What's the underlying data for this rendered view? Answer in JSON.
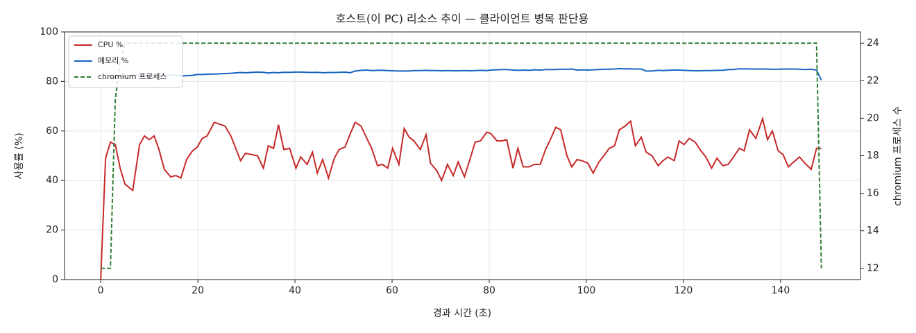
{
  "chart_data": {
    "type": "line",
    "title": "호스트(이 PC) 리소스 추이 — 클라이언트 병목 판단용",
    "x_label": "경과 시간 (초)",
    "y_label": "사용률 (%)",
    "y2_label": "chromium 프로세스 수",
    "x": [
      0,
      1,
      2,
      3,
      4,
      5,
      6.6,
      8,
      9,
      10,
      11,
      12,
      13.1,
      14.4,
      15.5,
      16.5,
      17.7,
      18.9,
      19.9,
      20.9,
      21.9,
      23.4,
      25.6,
      26.8,
      28.8,
      29.8,
      32.3,
      33.5,
      34.5,
      35.6,
      36.6,
      37.7,
      38.9,
      40.2,
      41.2,
      42.5,
      43.6,
      44.6,
      45.7,
      46.9,
      48.1,
      49.1,
      50.3,
      51.3,
      52.4,
      53.6,
      54.8,
      55.8,
      57,
      58,
      59.1,
      60.1,
      61.4,
      62.5,
      63.5,
      64.5,
      65.8,
      67,
      67.9,
      69.2,
      70.2,
      71.4,
      72.6,
      73.6,
      74.9,
      76.1,
      77.1,
      78.2,
      79.5,
      80.3,
      81.6,
      82.6,
      83.6,
      84.9,
      85.9,
      87,
      88.2,
      89.3,
      90.5,
      91.6,
      92.7,
      93.7,
      94.7,
      96,
      97,
      98.1,
      99.1,
      100.3,
      101.4,
      102.6,
      103.6,
      104.7,
      105.8,
      106.8,
      108,
      109.1,
      110.1,
      111.3,
      112.3,
      113.5,
      114.8,
      115.8,
      116.8,
      118.1,
      119.1,
      120.1,
      121.2,
      122.4,
      123.4,
      124.6,
      125.8,
      126.9,
      128.1,
      129.2,
      130.3,
      131.5,
      132.5,
      133.6,
      134.9,
      136.3,
      137.3,
      138.3,
      139.5,
      140.5,
      141.6,
      142.7,
      143.9,
      145,
      146.3,
      147.4,
      148.4
    ],
    "series": [
      {
        "name": "CPU %",
        "color": "#c62828",
        "dash": false,
        "values": [
          0,
          49,
          55.5,
          54.5,
          45,
          38.5,
          36,
          54.5,
          58,
          56.5,
          58,
          52.5,
          44.5,
          41.5,
          42,
          41,
          48.5,
          52,
          53.5,
          57,
          58,
          63.5,
          62,
          58,
          48,
          51,
          50,
          45,
          54,
          53,
          62.5,
          52.5,
          53,
          45,
          49.5,
          46.5,
          51.5,
          43,
          48.5,
          41,
          49,
          52.5,
          53.5,
          58.5,
          63.5,
          62,
          57,
          53,
          46,
          46.5,
          45,
          53,
          46.5,
          61,
          57.5,
          56,
          52.5,
          58.5,
          47,
          44,
          40,
          46.5,
          42,
          47.5,
          41.5,
          49,
          55.5,
          56,
          59.5,
          59,
          56,
          56,
          56.5,
          45,
          53,
          45.5,
          45.5,
          46.5,
          46.5,
          52.5,
          57,
          61.5,
          60.5,
          50,
          45.5,
          48.5,
          48,
          47,
          43,
          47.5,
          50,
          53,
          54,
          60.5,
          62,
          64,
          54,
          57.5,
          51.5,
          50,
          46,
          48,
          49.5,
          48,
          56,
          54.5,
          57,
          55.5,
          52.5,
          49.5,
          45,
          49,
          46,
          46.5,
          49.5,
          53,
          52,
          60.5,
          57,
          65,
          56.5,
          60,
          52,
          50.5,
          45.5,
          47.5,
          49.5,
          47,
          44.5,
          53,
          53
        ]
      },
      {
        "name": "메모리 %",
        "color": "#1565c0",
        "dash": false,
        "values": [
          81,
          81.2,
          81.5,
          81.8,
          82,
          82.2,
          82.4,
          82.5,
          82.5,
          82.6,
          82.5,
          82.4,
          82.5,
          82.6,
          82.5,
          82.3,
          82.3,
          82.5,
          82.8,
          82.8,
          82.9,
          83,
          83.2,
          83.3,
          83.6,
          83.5,
          83.8,
          83.7,
          83.4,
          83.6,
          83.5,
          83.7,
          83.7,
          83.8,
          83.8,
          83.7,
          83.6,
          83.7,
          83.5,
          83.6,
          83.6,
          83.7,
          83.8,
          83.5,
          84.2,
          84.5,
          84.6,
          84.4,
          84.5,
          84.5,
          84.4,
          84.3,
          84.2,
          84.2,
          84.2,
          84.4,
          84.4,
          84.5,
          84.4,
          84.4,
          84.3,
          84.4,
          84.3,
          84.3,
          84.4,
          84.3,
          84.4,
          84.5,
          84.4,
          84.6,
          84.7,
          84.8,
          84.8,
          84.6,
          84.5,
          84.6,
          84.5,
          84.7,
          84.6,
          84.8,
          84.8,
          84.8,
          84.9,
          84.9,
          85,
          84.6,
          84.7,
          84.6,
          84.7,
          84.8,
          84.9,
          84.9,
          85,
          85.2,
          85.1,
          85.1,
          85,
          85,
          84.2,
          84.2,
          84.5,
          84.4,
          84.5,
          84.6,
          84.6,
          84.5,
          84.4,
          84.3,
          84.3,
          84.4,
          84.4,
          84.5,
          84.5,
          84.8,
          84.8,
          85.1,
          85.1,
          85,
          85,
          85,
          85,
          84.9,
          84.9,
          85,
          85,
          85,
          84.9,
          84.8,
          84.9,
          84.6,
          80.5
        ]
      },
      {
        "name": "chromium 프로세스",
        "color": "#2e7d32",
        "dash": true,
        "axis": "y2",
        "values": [
          12,
          12,
          12,
          21,
          23,
          24,
          24,
          24,
          24,
          24,
          24,
          24,
          24,
          24,
          24,
          24,
          24,
          24,
          24,
          24,
          24,
          24,
          24,
          24,
          24,
          24,
          24,
          24,
          24,
          24,
          24,
          24,
          24,
          24,
          24,
          24,
          24,
          24,
          24,
          24,
          24,
          24,
          24,
          24,
          24,
          24,
          24,
          24,
          24,
          24,
          24,
          24,
          24,
          24,
          24,
          24,
          24,
          24,
          24,
          24,
          24,
          24,
          24,
          24,
          24,
          24,
          24,
          24,
          24,
          24,
          24,
          24,
          24,
          24,
          24,
          24,
          24,
          24,
          24,
          24,
          24,
          24,
          24,
          24,
          24,
          24,
          24,
          24,
          24,
          24,
          24,
          24,
          24,
          24,
          24,
          24,
          24,
          24,
          24,
          24,
          24,
          24,
          24,
          24,
          24,
          24,
          24,
          24,
          24,
          24,
          24,
          24,
          24,
          24,
          24,
          24,
          24,
          24,
          24,
          24,
          24,
          24,
          24,
          24,
          24,
          24,
          24,
          24,
          24,
          24,
          12
        ]
      }
    ],
    "xlim": [
      -7.45,
      156.45
    ],
    "xticks": [
      0,
      20,
      40,
      60,
      80,
      100,
      120,
      140
    ],
    "ylim": [
      0,
      100
    ],
    "yticks": [
      0,
      20,
      40,
      60,
      80,
      100
    ],
    "y2lim": [
      11.4,
      24.6
    ],
    "y2ticks": [
      12,
      14,
      16,
      18,
      20,
      22,
      24
    ],
    "grid": true,
    "legend": "upper left"
  }
}
